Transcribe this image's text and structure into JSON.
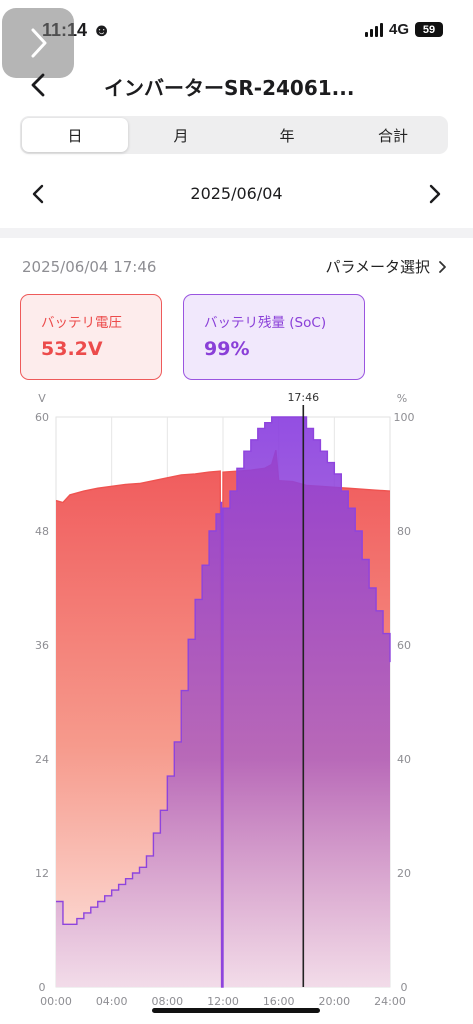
{
  "status_bar": {
    "time": "11:14",
    "emoji": "☻",
    "network": "4G",
    "battery": "59"
  },
  "header": {
    "title": "インバーターSR-24061..."
  },
  "period_tabs": [
    {
      "label": "日",
      "active": true
    },
    {
      "label": "月",
      "active": false
    },
    {
      "label": "年",
      "active": false
    },
    {
      "label": "合計",
      "active": false
    }
  ],
  "date_nav": {
    "date": "2025/06/04"
  },
  "info": {
    "timestamp": "2025/06/04 17:46",
    "param_select_label": "パラメータ選択"
  },
  "cards": {
    "voltage": {
      "label": "バッテリ電圧",
      "value": "53.2V"
    },
    "soc": {
      "label": "バッテリ残量 (SoC)",
      "value": "99%"
    }
  },
  "colors": {
    "voltage": "#ef5350",
    "soc": "#8e44dd",
    "cursor": "#222222"
  },
  "chart_data": {
    "type": "area",
    "left_unit": "V",
    "right_unit": "%",
    "x_ticks": [
      "00:00",
      "04:00",
      "08:00",
      "12:00",
      "16:00",
      "20:00",
      "24:00"
    ],
    "left_ticks": [
      "0",
      "12",
      "24",
      "36",
      "48",
      "60"
    ],
    "right_ticks": [
      "0",
      "20",
      "40",
      "60",
      "80",
      "100"
    ],
    "ylim_left": [
      0,
      60
    ],
    "ylim_right": [
      0,
      100
    ],
    "xlim_hours": [
      0,
      24
    ],
    "grid": true,
    "cursor": {
      "label": "17:46",
      "hour": 17.77
    },
    "series": [
      {
        "name": "バッテリ電圧",
        "axis": "left",
        "x_hours": [
          0,
          0.5,
          1,
          2,
          3,
          4,
          5,
          6,
          7,
          8,
          9,
          10,
          11,
          11.8,
          11.9,
          12,
          13,
          14,
          15,
          15.5,
          15.8,
          16,
          17,
          18,
          19,
          20,
          21,
          22,
          23,
          24
        ],
        "values": [
          51.2,
          51.0,
          51.8,
          52.2,
          52.5,
          52.7,
          52.9,
          53.0,
          53.3,
          53.6,
          53.9,
          54.0,
          54.2,
          54.3,
          0,
          54.2,
          54.3,
          54.4,
          54.6,
          55.0,
          56.5,
          53.3,
          53.2,
          52.8,
          52.7,
          52.6,
          52.5,
          52.4,
          52.3,
          52.2
        ]
      },
      {
        "name": "バッテリ残量 (SoC)",
        "axis": "right",
        "x_hours": [
          0,
          0.5,
          1,
          1.5,
          2,
          2.5,
          3,
          3.5,
          4,
          4.5,
          5,
          5.5,
          6,
          6.5,
          7,
          7.5,
          8,
          8.5,
          9,
          9.5,
          10,
          10.5,
          11,
          11.5,
          11.85,
          11.9,
          12.0,
          12.5,
          13,
          13.5,
          14,
          14.5,
          15,
          15.5,
          15.7,
          15.8,
          17.5,
          18,
          18.5,
          19,
          19.5,
          20,
          20.5,
          21,
          21.5,
          22,
          22.5,
          23,
          23.5,
          24
        ],
        "values": [
          15,
          11,
          11,
          12,
          13,
          14,
          15,
          16,
          17,
          18,
          19,
          20,
          21,
          23,
          27,
          31,
          37,
          43,
          52,
          61,
          68,
          74,
          80,
          83,
          85,
          0,
          84,
          87,
          91,
          94,
          96,
          98,
          99,
          100,
          100,
          100,
          100,
          98,
          96,
          94,
          92,
          90,
          87,
          84,
          80,
          75,
          70,
          66,
          62,
          57
        ]
      }
    ]
  }
}
